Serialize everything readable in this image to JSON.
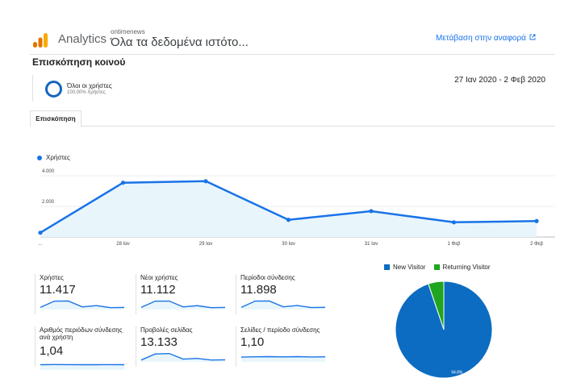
{
  "header": {
    "brand": "Analytics",
    "account": "ontimenews",
    "view": "Όλα τα δεδομένα ιστότο...",
    "report_link": "Μετάβαση στην αναφορά",
    "logo_icon": "analytics-logo-icon",
    "link_icon": "external-link-icon",
    "colors": {
      "logo_orange": "#f9ab00",
      "logo_dark": "#e37400",
      "link": "#1a73e8"
    }
  },
  "page": {
    "title": "Επισκόπηση κοινού",
    "date_range": "27 Ιαν 2020 - 2 Φεβ 2020"
  },
  "segment": {
    "name": "Όλοι οι χρήστες",
    "share": "100,00% Χρήστες",
    "color": "#1565c0"
  },
  "tabs": [
    {
      "label": "Επισκόπηση"
    }
  ],
  "chart_data": [
    {
      "type": "area",
      "series": [
        {
          "name": "Χρήστες",
          "values": [
            280,
            3550,
            3650,
            1120,
            1690,
            960,
            1040
          ]
        }
      ],
      "categories": [
        "...",
        "28 Ιαν",
        "29 Ιαν",
        "30 Ιαν",
        "31 Ιαν",
        "1 Φεβ",
        "2 Φεβ"
      ],
      "y_ticks": [
        "4.000",
        "2.000"
      ],
      "y_tick_values": [
        4000,
        2000
      ],
      "ylim": [
        0,
        4800
      ],
      "grid": true,
      "legend": "top-left",
      "line_color": "#1a73e8",
      "fill_color": "#e8f6fc"
    },
    {
      "type": "pie",
      "categories": [
        "New Visitor",
        "Returning Visitor"
      ],
      "values": [
        94.8,
        5.2
      ],
      "colors": [
        "#0b6cc1",
        "#1fa51f"
      ],
      "data_labels": [
        "94.8%",
        ""
      ],
      "legend": "top"
    }
  ],
  "metrics": [
    {
      "label": "Χρήστες",
      "value": "11.417",
      "spark": [
        0.15,
        0.85,
        0.87,
        0.2,
        0.35,
        0.12,
        0.14
      ]
    },
    {
      "label": "Νέοι χρήστες",
      "value": "11.112",
      "spark": [
        0.15,
        0.85,
        0.86,
        0.2,
        0.34,
        0.12,
        0.14
      ]
    },
    {
      "label": "Περίοδοι σύνδεσης",
      "value": "11.898",
      "spark": [
        0.15,
        0.86,
        0.87,
        0.21,
        0.36,
        0.13,
        0.15
      ]
    },
    {
      "label": "Αριθμός περιόδων σύνδεσης ανά χρήστη",
      "value": "1,04",
      "spark": [
        0.5,
        0.52,
        0.51,
        0.5,
        0.5,
        0.51,
        0.5
      ]
    },
    {
      "label": "Προβολές σελίδας",
      "value": "13.133",
      "spark": [
        0.12,
        0.8,
        0.85,
        0.22,
        0.3,
        0.12,
        0.14
      ]
    },
    {
      "label": "Σελίδες / περίοδο σύνδεσης",
      "value": "1,10",
      "spark": [
        0.45,
        0.48,
        0.5,
        0.47,
        0.5,
        0.46,
        0.48
      ]
    }
  ]
}
